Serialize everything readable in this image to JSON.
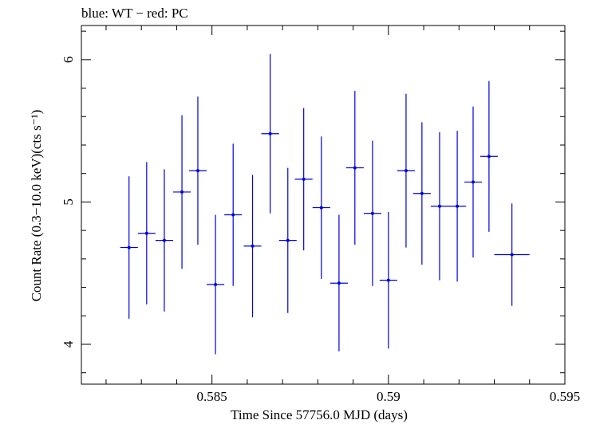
{
  "chart_data": {
    "type": "scatter",
    "title": "blue: WT − red: PC",
    "xlabel": "Time Since 57756.0 MJD (days)",
    "ylabel": "Count Rate (0.3−10.0 keV)(cts s⁻¹)",
    "xlim": [
      0.5813,
      0.595
    ],
    "ylim": [
      3.72,
      6.24
    ],
    "x_ticks": [
      0.585,
      0.59,
      0.595
    ],
    "x_tick_labels": [
      "0.585",
      "0.59",
      "0.595"
    ],
    "y_ticks": [
      4,
      5,
      6
    ],
    "y_tick_labels": [
      "4",
      "5",
      "6"
    ],
    "grid": false,
    "series": [
      {
        "name": "WT",
        "color": "#0000dd",
        "points": [
          {
            "x": 0.58265,
            "xerr": 0.00025,
            "y": 4.68,
            "yerr": 0.5
          },
          {
            "x": 0.58315,
            "xerr": 0.00025,
            "y": 4.78,
            "yerr": 0.5
          },
          {
            "x": 0.58365,
            "xerr": 0.00025,
            "y": 4.73,
            "yerr": 0.5
          },
          {
            "x": 0.58415,
            "xerr": 0.00025,
            "y": 5.07,
            "yerr": 0.54
          },
          {
            "x": 0.5846,
            "xerr": 0.00025,
            "y": 5.22,
            "yerr": 0.52
          },
          {
            "x": 0.5851,
            "xerr": 0.00025,
            "y": 4.42,
            "yerr": 0.49
          },
          {
            "x": 0.5856,
            "xerr": 0.00025,
            "y": 4.91,
            "yerr": 0.5
          },
          {
            "x": 0.58615,
            "xerr": 0.00025,
            "y": 4.69,
            "yerr": 0.5
          },
          {
            "x": 0.58665,
            "xerr": 0.00025,
            "y": 5.48,
            "yerr": 0.56
          },
          {
            "x": 0.58715,
            "xerr": 0.00025,
            "y": 4.73,
            "yerr": 0.51
          },
          {
            "x": 0.5876,
            "xerr": 0.00025,
            "y": 5.16,
            "yerr": 0.5
          },
          {
            "x": 0.5881,
            "xerr": 0.00025,
            "y": 4.96,
            "yerr": 0.5
          },
          {
            "x": 0.5886,
            "xerr": 0.00025,
            "y": 4.43,
            "yerr": 0.48
          },
          {
            "x": 0.58905,
            "xerr": 0.00025,
            "y": 5.24,
            "yerr": 0.54
          },
          {
            "x": 0.58955,
            "xerr": 0.00025,
            "y": 4.92,
            "yerr": 0.51
          },
          {
            "x": 0.59,
            "xerr": 0.00025,
            "y": 4.45,
            "yerr": 0.48
          },
          {
            "x": 0.5905,
            "xerr": 0.00025,
            "y": 5.22,
            "yerr": 0.54
          },
          {
            "x": 0.59095,
            "xerr": 0.00025,
            "y": 5.06,
            "yerr": 0.5
          },
          {
            "x": 0.59145,
            "xerr": 0.00025,
            "y": 4.97,
            "yerr": 0.52
          },
          {
            "x": 0.59195,
            "xerr": 0.00025,
            "y": 4.97,
            "yerr": 0.53
          },
          {
            "x": 0.5924,
            "xerr": 0.00025,
            "y": 5.14,
            "yerr": 0.53
          },
          {
            "x": 0.59285,
            "xerr": 0.00025,
            "y": 5.32,
            "yerr": 0.53
          },
          {
            "x": 0.5935,
            "xerr": 0.0005,
            "y": 4.63,
            "yerr": 0.36
          }
        ]
      }
    ]
  }
}
